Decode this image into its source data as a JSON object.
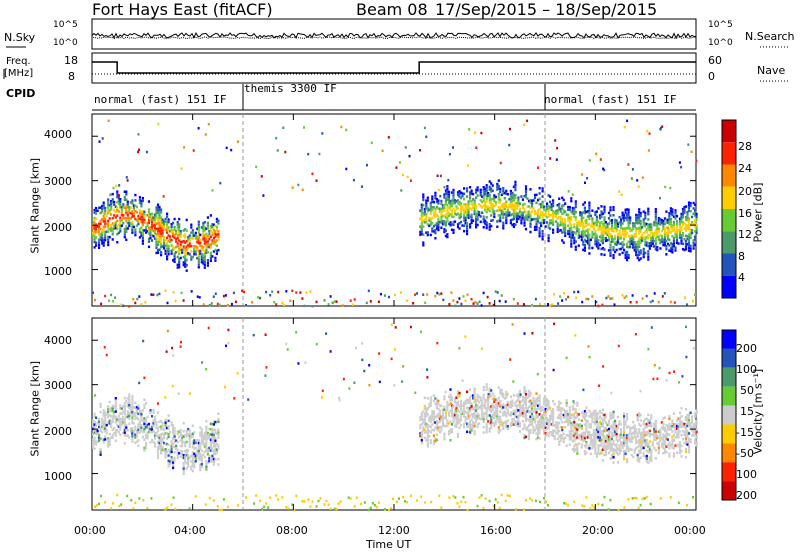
{
  "header": {
    "title": "Fort Hays East (fitACF)",
    "beam": "Beam 08",
    "date_range": "17/Sep/2015 – 18/Sep/2015"
  },
  "left_labels": {
    "nsky": "N.Sky",
    "freq_line1": "Freq.",
    "freq_line2": "[MHz]",
    "cpid": "CPID"
  },
  "right_labels": {
    "nsearch": "N.Search",
    "nave": "Nave"
  },
  "noise_panel": {
    "left_ticks": [
      "10^5",
      "10^0"
    ],
    "right_ticks": [
      "10^5",
      "10^0"
    ]
  },
  "freq_panel": {
    "left_ticks": [
      "18",
      "8"
    ],
    "right_ticks": [
      "60",
      "0"
    ]
  },
  "cpid_segments": [
    {
      "label": "normal (fast) 151 IF",
      "start": 0,
      "end": 6
    },
    {
      "label": "themis 3300 IF",
      "start": 6,
      "end": 18
    },
    {
      "label": "normal (fast) 151 IF",
      "start": 18,
      "end": 24
    }
  ],
  "power_colorbar": {
    "label": "Power [dB]",
    "ticks": [
      "4",
      "8",
      "12",
      "16",
      "20",
      "24",
      "28"
    ],
    "colors": [
      "#0000ff",
      "#2255bb",
      "#4a9a6a",
      "#66cc33",
      "#ffcc00",
      "#ff8800",
      "#ff2200",
      "#cc0000"
    ]
  },
  "velocity_colorbar": {
    "label": "Velocity [m s⁻¹]",
    "ticks": [
      "200",
      "100",
      "50",
      "15",
      "-15",
      "-50",
      "-100",
      "-200"
    ],
    "colors": [
      "#0000ff",
      "#2255bb",
      "#4a9a6a",
      "#66cc33",
      "#cccccc",
      "#ffcc00",
      "#ff8800",
      "#ff2200",
      "#cc0000"
    ]
  },
  "chart_data": [
    {
      "type": "heatmap",
      "title": "Power",
      "ylabel": "Slant Range [km]",
      "xlabel": "Time UT",
      "ylim": [
        180,
        4500
      ],
      "xlim": [
        0,
        24
      ],
      "x_ticks": [
        "00:00",
        "04:00",
        "08:00",
        "12:00",
        "16:00",
        "20:00",
        "00:00"
      ],
      "y_ticks": [
        "1000",
        "2000",
        "3000",
        "4000"
      ],
      "features": [
        {
          "name": "echo_band_early",
          "t_start": 0.0,
          "t_end": 5.0,
          "range_low": 1250,
          "range_high": 2600,
          "peak_db": 28
        },
        {
          "name": "echo_band_late",
          "t_start": 13.0,
          "t_end": 24.0,
          "range_low": 1500,
          "range_high": 2800,
          "peak_db": 24
        },
        {
          "name": "ground_clutter",
          "t_start": 0.0,
          "t_end": 24.0,
          "range_low": 180,
          "range_high": 600,
          "peak_db": 28
        }
      ]
    },
    {
      "type": "heatmap",
      "title": "Velocity",
      "ylabel": "Slant Range [km]",
      "xlabel": "Time UT",
      "ylim": [
        180,
        4500
      ],
      "xlim": [
        0,
        24
      ],
      "x_ticks": [
        "00:00",
        "04:00",
        "08:00",
        "12:00",
        "16:00",
        "20:00",
        "00:00"
      ],
      "y_ticks": [
        "1000",
        "2000",
        "3000",
        "4000"
      ]
    }
  ],
  "xaxis": {
    "label": "Time UT",
    "ticks": [
      "00:00",
      "04:00",
      "08:00",
      "12:00",
      "16:00",
      "20:00",
      "00:00"
    ]
  }
}
